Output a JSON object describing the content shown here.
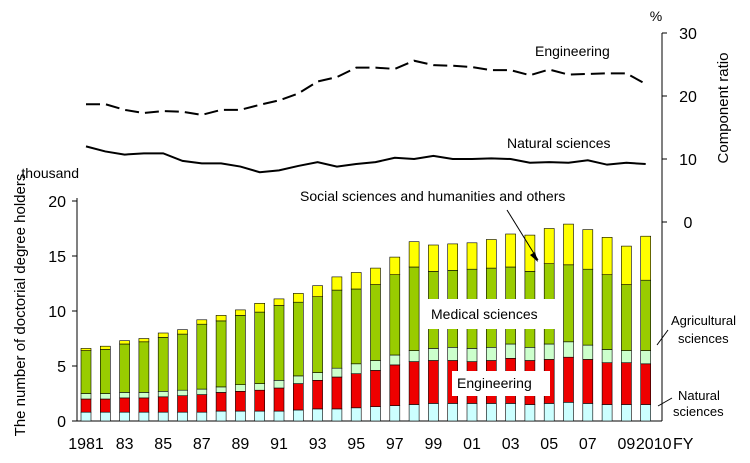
{
  "colors": {
    "natural": "#CCFFFF",
    "engineering": "#EE0000",
    "agricultural": "#CCFFCC",
    "medical": "#99CC00",
    "social": "#FFFF00",
    "outline": "#000000"
  },
  "chart_data": [
    {
      "type": "bar",
      "stacked": true,
      "unit": "thousand",
      "ylabel": "The number of doctorial degree holders",
      "xlabel": "FY",
      "ylim": [
        0,
        20
      ],
      "yticks": [
        "0",
        "5",
        "10",
        "15",
        "20"
      ],
      "categories": [
        "1981",
        "1982",
        "1983",
        "1984",
        "1985",
        "1986",
        "1987",
        "1988",
        "1989",
        "1990",
        "1991",
        "1992",
        "1993",
        "1994",
        "1995",
        "1996",
        "1997",
        "1998",
        "1999",
        "2000",
        "2001",
        "2002",
        "2003",
        "2004",
        "2005",
        "2006",
        "2007",
        "2008",
        "2009",
        "2010"
      ],
      "xtick_labels": [
        "1981",
        "",
        "83",
        "",
        "85",
        "",
        "87",
        "",
        "89",
        "",
        "91",
        "",
        "93",
        "",
        "95",
        "",
        "97",
        "",
        "99",
        "",
        "01",
        "",
        "03",
        "",
        "05",
        "",
        "07",
        "",
        "09",
        "2010"
      ],
      "series": [
        {
          "name": "Natural sciences",
          "color_key": "natural",
          "values": [
            0.8,
            0.8,
            0.8,
            0.8,
            0.8,
            0.8,
            0.8,
            0.9,
            0.9,
            0.9,
            0.9,
            1.0,
            1.1,
            1.1,
            1.2,
            1.3,
            1.4,
            1.5,
            1.6,
            1.6,
            1.6,
            1.6,
            1.6,
            1.5,
            1.6,
            1.7,
            1.6,
            1.5,
            1.5,
            1.5
          ]
        },
        {
          "name": "Engineering",
          "color_key": "engineering",
          "values": [
            1.2,
            1.2,
            1.3,
            1.3,
            1.4,
            1.5,
            1.6,
            1.7,
            1.8,
            1.9,
            2.1,
            2.4,
            2.6,
            2.9,
            3.1,
            3.3,
            3.7,
            3.9,
            3.9,
            3.9,
            3.8,
            3.9,
            4.1,
            4.0,
            4.0,
            4.1,
            4.0,
            3.8,
            3.8,
            3.7
          ]
        },
        {
          "name": "Agricultural sciences",
          "color_key": "agricultural",
          "values": [
            0.5,
            0.5,
            0.5,
            0.5,
            0.5,
            0.5,
            0.5,
            0.5,
            0.6,
            0.6,
            0.7,
            0.7,
            0.7,
            0.8,
            0.9,
            0.9,
            0.9,
            1.0,
            1.1,
            1.2,
            1.2,
            1.2,
            1.3,
            1.2,
            1.4,
            1.4,
            1.3,
            1.2,
            1.1,
            1.2
          ]
        },
        {
          "name": "Medical sciences",
          "color_key": "medical",
          "values": [
            3.9,
            4.0,
            4.4,
            4.6,
            4.9,
            5.1,
            5.9,
            6.0,
            6.3,
            6.5,
            6.8,
            6.7,
            6.9,
            7.1,
            6.8,
            6.9,
            7.3,
            7.6,
            7.0,
            7.0,
            7.2,
            7.2,
            7.0,
            6.9,
            7.3,
            7.0,
            6.9,
            6.8,
            6.0,
            6.4
          ]
        },
        {
          "name": "Social sciences and humanities and others",
          "color_key": "social",
          "values": [
            0.2,
            0.3,
            0.3,
            0.3,
            0.4,
            0.4,
            0.4,
            0.5,
            0.5,
            0.8,
            0.6,
            0.8,
            1.0,
            1.2,
            1.5,
            1.5,
            1.6,
            2.3,
            2.4,
            2.4,
            2.4,
            2.6,
            3.0,
            3.3,
            3.2,
            3.7,
            3.6,
            3.4,
            3.5,
            4.0
          ]
        }
      ]
    },
    {
      "type": "line",
      "ylabel": "Component ratio",
      "unit": "%",
      "ylim": [
        0,
        30
      ],
      "yticks": [
        "0",
        "10",
        "20",
        "30"
      ],
      "x": [
        "1981",
        "1982",
        "1983",
        "1984",
        "1985",
        "1986",
        "1987",
        "1988",
        "1989",
        "1990",
        "1991",
        "1992",
        "1993",
        "1994",
        "1995",
        "1996",
        "1997",
        "1998",
        "1999",
        "2000",
        "2001",
        "2002",
        "2003",
        "2004",
        "2005",
        "2006",
        "2007",
        "2008",
        "2009",
        "2010"
      ],
      "series": [
        {
          "name": "Engineering",
          "style": "dashed",
          "values": [
            18.7,
            18.7,
            17.8,
            17.3,
            17.6,
            17.5,
            17.0,
            17.8,
            17.8,
            18.6,
            19.3,
            20.4,
            22.3,
            23.0,
            24.5,
            24.5,
            24.3,
            25.6,
            24.9,
            24.8,
            24.6,
            24.1,
            24.1,
            23.3,
            24.2,
            23.4,
            23.5,
            23.6,
            23.6,
            21.9
          ]
        },
        {
          "name": "Natural sciences",
          "style": "solid",
          "values": [
            12.0,
            11.2,
            10.7,
            10.9,
            10.9,
            9.7,
            9.3,
            9.3,
            8.8,
            7.9,
            8.2,
            8.9,
            9.5,
            8.8,
            9.2,
            9.5,
            10.2,
            10.0,
            10.5,
            10.0,
            10.0,
            10.1,
            10.0,
            9.4,
            9.5,
            9.4,
            9.8,
            9.1,
            9.4,
            9.2
          ]
        }
      ]
    }
  ],
  "labels": {
    "thousand": "thousand",
    "percent": "%",
    "fy": "FY",
    "line_engineering": "Engineering",
    "line_natural": "Natural sciences",
    "bar_social": "Social sciences and humanities and others",
    "bar_medical": "Medical sciences",
    "bar_engineering": "Engineering",
    "bar_agricultural_1": "Agricultural",
    "bar_agricultural_2": "sciences",
    "bar_natural_1": "Natural",
    "bar_natural_2": "sciences",
    "ylabel_left": "The number of doctorial degree holders",
    "ylabel_right": "Component ratio"
  }
}
